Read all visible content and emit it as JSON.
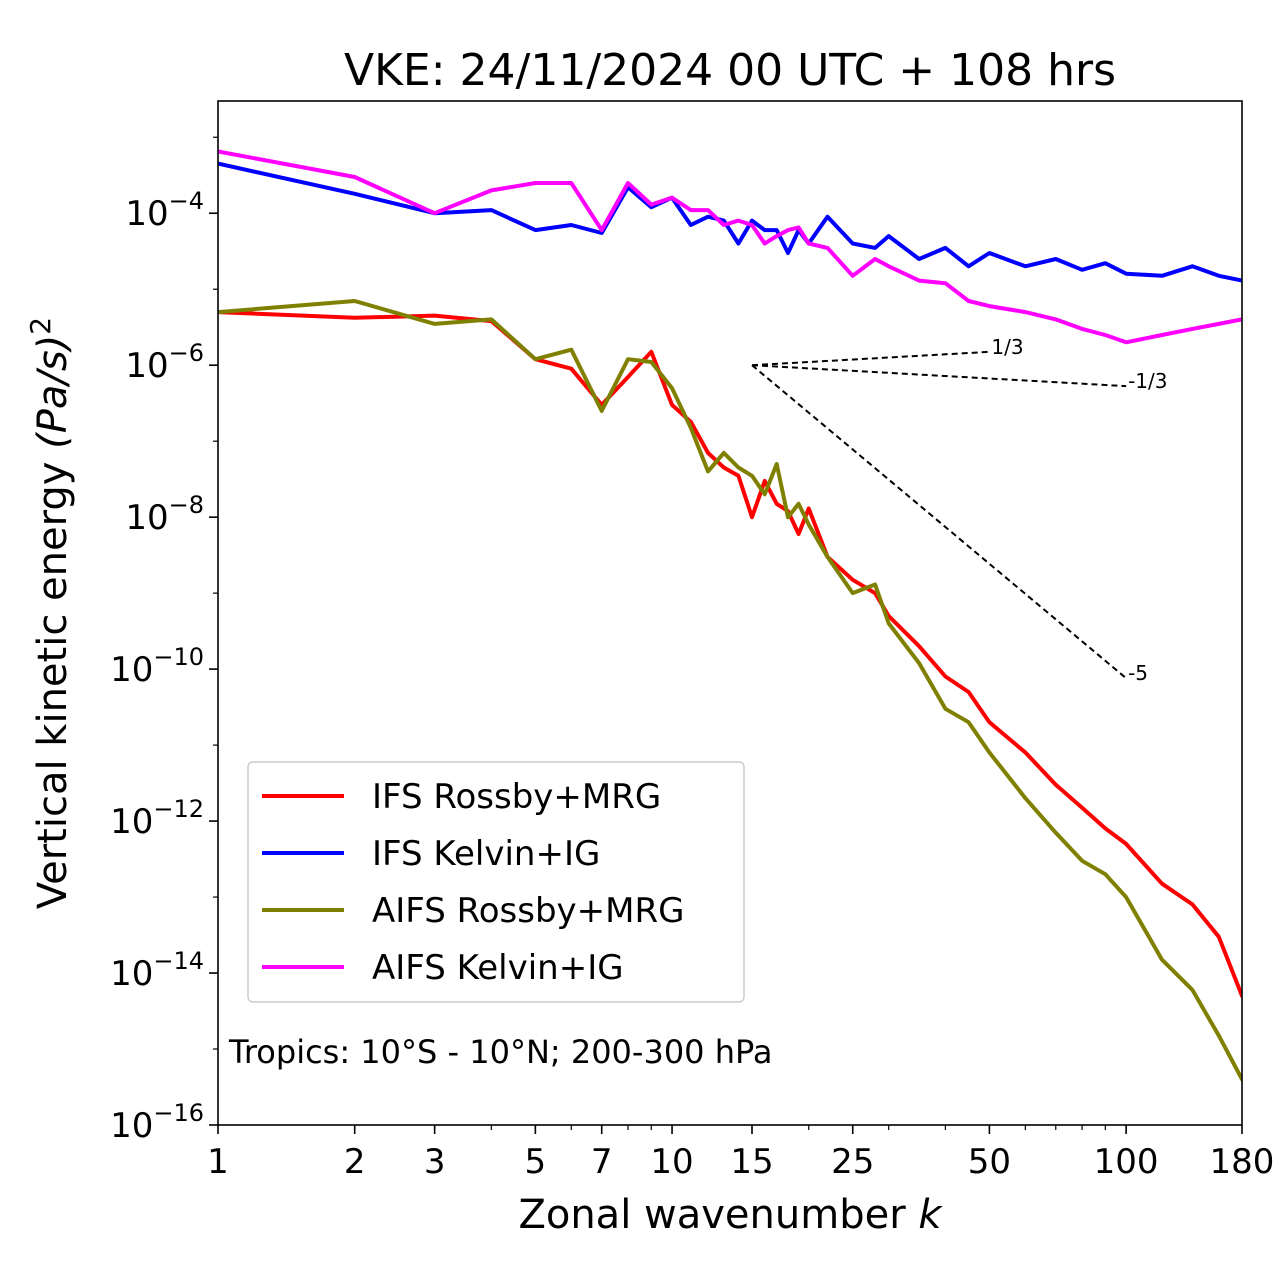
{
  "chart_data": {
    "type": "line",
    "title": "VKE: 24/11/2024 00 UTC + 108 hrs",
    "xlabel": "Zonal wavenumber",
    "xlabel_var": "k",
    "ylabel": "Vertical kinetic energy",
    "ylabel_var": "(Pa/s)",
    "ylabel_exp": "2",
    "xscale": "log",
    "yscale": "log",
    "xlim": [
      1,
      180
    ],
    "ylim": [
      1e-16,
      0.003
    ],
    "grid": false,
    "legend_position": "lower-left",
    "annotation": "Tropics: 10°S - 10°N; 200-300 hPa",
    "x_ticks": [
      {
        "value": 1,
        "label": "1"
      },
      {
        "value": 2,
        "label": "2"
      },
      {
        "value": 3,
        "label": "3"
      },
      {
        "value": 5,
        "label": "5"
      },
      {
        "value": 7,
        "label": "7"
      },
      {
        "value": 10,
        "label": "10"
      },
      {
        "value": 15,
        "label": "15"
      },
      {
        "value": 25,
        "label": "25"
      },
      {
        "value": 50,
        "label": "50"
      },
      {
        "value": 100,
        "label": "100"
      },
      {
        "value": 180,
        "label": "180"
      }
    ],
    "y_ticks": [
      {
        "value": 0.0001,
        "base": "10",
        "exp": "−4"
      },
      {
        "value": 1e-06,
        "base": "10",
        "exp": "−6"
      },
      {
        "value": 1e-08,
        "base": "10",
        "exp": "−8"
      },
      {
        "value": 1e-10,
        "base": "10",
        "exp": "−10"
      },
      {
        "value": 1e-12,
        "base": "10",
        "exp": "−12"
      },
      {
        "value": 1e-14,
        "base": "10",
        "exp": "−14"
      },
      {
        "value": 1e-16,
        "base": "10",
        "exp": "−16"
      }
    ],
    "reference_slopes": [
      {
        "label": "1/3",
        "x0": 15,
        "y0": 1e-06,
        "x1": 50,
        "y1": 1.5e-06
      },
      {
        "label": "-1/3",
        "x0": 15,
        "y0": 1e-06,
        "x1": 100,
        "y1": 5.3e-07
      },
      {
        "label": "-5",
        "x0": 15,
        "y0": 1e-06,
        "x1": 100,
        "y1": 7.6e-11
      }
    ],
    "series": [
      {
        "name": "IFS Rossby+MRG",
        "color": "#ff0000",
        "x": [
          1,
          2,
          3,
          4,
          5,
          6,
          7,
          8,
          9,
          10,
          11,
          12,
          13,
          14,
          15,
          16,
          17,
          18,
          19,
          20,
          22,
          25,
          28,
          30,
          35,
          40,
          45,
          50,
          60,
          70,
          80,
          90,
          100,
          120,
          140,
          160,
          180
        ],
        "y": [
          5e-06,
          4.2e-06,
          4.5e-06,
          3.8e-06,
          1.2e-06,
          9e-07,
          3e-07,
          7e-07,
          1.5e-06,
          3e-07,
          1.8e-07,
          7e-08,
          4.5e-08,
          3.5e-08,
          1e-08,
          3e-08,
          1.5e-08,
          1.2e-08,
          6e-09,
          1.3e-08,
          3e-09,
          1.5e-09,
          1e-09,
          5e-10,
          2e-10,
          8e-11,
          5e-11,
          2e-11,
          8e-12,
          3e-12,
          1.5e-12,
          8e-13,
          5e-13,
          1.5e-13,
          8e-14,
          3e-14,
          5e-15
        ]
      },
      {
        "name": "IFS Kelvin+IG",
        "color": "#0000ff",
        "x": [
          1,
          2,
          3,
          4,
          5,
          6,
          7,
          8,
          9,
          10,
          11,
          12,
          13,
          14,
          15,
          16,
          17,
          18,
          19,
          20,
          22,
          25,
          28,
          30,
          35,
          40,
          45,
          50,
          60,
          70,
          80,
          90,
          100,
          120,
          140,
          160,
          180
        ],
        "y": [
          0.00045,
          0.00018,
          0.0001,
          0.00011,
          6e-05,
          7e-05,
          5.5e-05,
          0.00022,
          0.00012,
          0.00016,
          7e-05,
          9e-05,
          8e-05,
          4e-05,
          8e-05,
          6e-05,
          6e-05,
          3e-05,
          6e-05,
          4e-05,
          9e-05,
          4e-05,
          3.5e-05,
          5e-05,
          2.5e-05,
          3.5e-05,
          2e-05,
          3e-05,
          2e-05,
          2.5e-05,
          1.8e-05,
          2.2e-05,
          1.6e-05,
          1.5e-05,
          2e-05,
          1.5e-05,
          1.3e-05
        ]
      },
      {
        "name": "AIFS Rossby+MRG",
        "color": "#808000",
        "x": [
          1,
          2,
          3,
          4,
          5,
          6,
          7,
          8,
          9,
          10,
          11,
          12,
          13,
          14,
          15,
          16,
          17,
          18,
          19,
          20,
          22,
          25,
          28,
          30,
          35,
          40,
          45,
          50,
          60,
          70,
          80,
          90,
          100,
          120,
          140,
          160,
          180
        ],
        "y": [
          5e-06,
          7e-06,
          3.5e-06,
          4e-06,
          1.2e-06,
          1.6e-06,
          2.5e-07,
          1.2e-06,
          1.1e-06,
          5e-07,
          1.5e-07,
          4e-08,
          7e-08,
          4.5e-08,
          3.5e-08,
          2e-08,
          5e-08,
          1e-08,
          1.5e-08,
          8e-09,
          3e-09,
          1e-09,
          1.3e-09,
          4e-10,
          1.2e-10,
          3e-11,
          2e-11,
          8e-12,
          2e-12,
          7e-13,
          3e-13,
          2e-13,
          1e-13,
          1.5e-14,
          6e-15,
          1.5e-15,
          4e-16
        ]
      },
      {
        "name": "AIFS Kelvin+IG",
        "color": "#ff00ff",
        "x": [
          1,
          2,
          3,
          4,
          5,
          6,
          7,
          8,
          9,
          10,
          11,
          12,
          13,
          14,
          15,
          16,
          17,
          18,
          19,
          20,
          22,
          25,
          28,
          30,
          35,
          40,
          45,
          50,
          60,
          70,
          80,
          90,
          100,
          120,
          140,
          160,
          180
        ],
        "y": [
          0.00065,
          0.0003,
          0.0001,
          0.0002,
          0.00025,
          0.00025,
          6e-05,
          0.00025,
          0.00013,
          0.00016,
          0.00011,
          0.00011,
          7e-05,
          8e-05,
          7e-05,
          4e-05,
          5e-05,
          6e-05,
          6.5e-05,
          4e-05,
          3.5e-05,
          1.5e-05,
          2.5e-05,
          2e-05,
          1.3e-05,
          1.2e-05,
          7e-06,
          6e-06,
          5e-06,
          4e-06,
          3e-06,
          2.5e-06,
          2e-06,
          2.5e-06,
          3e-06,
          3.5e-06,
          4e-06
        ]
      }
    ]
  }
}
